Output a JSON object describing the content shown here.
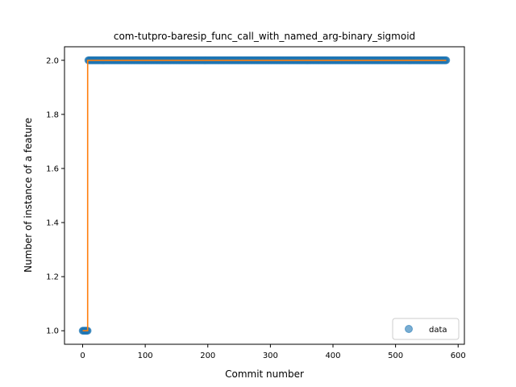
{
  "chart_data": {
    "type": "scatter",
    "title": "com-tutpro-baresip_func_call_with_named_arg-binary_sigmoid",
    "xlabel": "Commit number",
    "ylabel": "Number of instance of a feature",
    "xlim": [
      -29,
      610
    ],
    "ylim": [
      0.95,
      2.05
    ],
    "xticks": [
      0,
      100,
      200,
      300,
      400,
      500,
      600
    ],
    "yticks": [
      1.0,
      1.2,
      1.4,
      1.6,
      1.8,
      2.0
    ],
    "xtick_labels": [
      "0",
      "100",
      "200",
      "300",
      "400",
      "500",
      "600"
    ],
    "ytick_labels": [
      "1.0",
      "1.2",
      "1.4",
      "1.6",
      "1.8",
      "2.0"
    ],
    "legend": {
      "entries": [
        "data"
      ],
      "placement": "lower-right"
    },
    "grid": false,
    "series": [
      {
        "name": "data",
        "kind": "points",
        "color": "#1f77b4",
        "segments": [
          {
            "x_start": 0,
            "x_end": 8,
            "y": 1.0
          },
          {
            "x_start": 9,
            "x_end": 581,
            "y": 2.0
          }
        ]
      },
      {
        "kind": "step-line",
        "color": "#ff7f0e",
        "x": [
          0,
          8,
          8,
          581
        ],
        "y": [
          1.0,
          1.0,
          2.0,
          2.0
        ]
      }
    ]
  }
}
